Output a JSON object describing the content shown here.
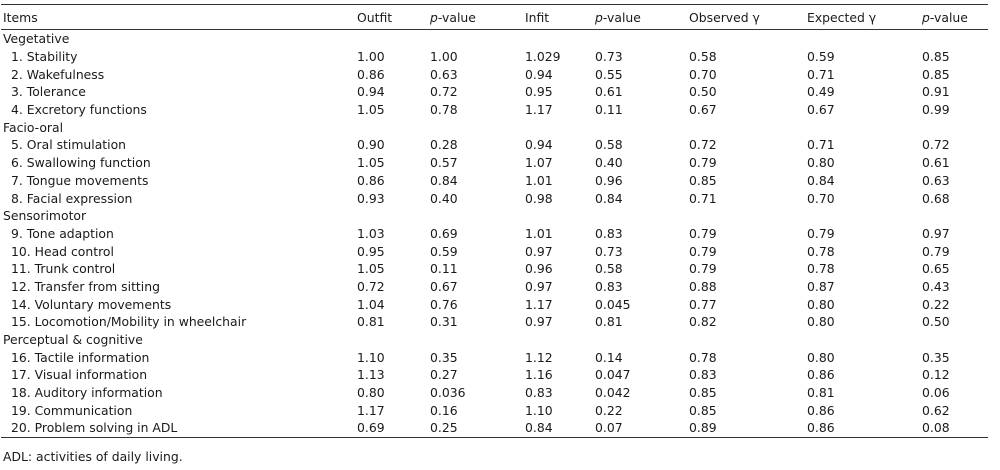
{
  "table": {
    "headers": [
      {
        "pre": "Items",
        "italic": "",
        "post": ""
      },
      {
        "pre": "Outfit",
        "italic": "",
        "post": ""
      },
      {
        "pre": "",
        "italic": "p",
        "post": "-value"
      },
      {
        "pre": "Infit",
        "italic": "",
        "post": ""
      },
      {
        "pre": "",
        "italic": "p",
        "post": "-value"
      },
      {
        "pre": "Observed γ",
        "italic": "",
        "post": ""
      },
      {
        "pre": "Expected γ",
        "italic": "",
        "post": ""
      },
      {
        "pre": "",
        "italic": "p",
        "post": "-value"
      }
    ],
    "groups": [
      {
        "name": "Vegetative",
        "rows": [
          [
            "1. Stability",
            "1.00",
            "1.00",
            "1.029",
            "0.73",
            "0.58",
            "0.59",
            "0.85"
          ],
          [
            "2. Wakefulness",
            "0.86",
            "0.63",
            "0.94",
            "0.55",
            "0.70",
            "0.71",
            "0.85"
          ],
          [
            "3. Tolerance",
            "0.94",
            "0.72",
            "0.95",
            "0.61",
            "0.50",
            "0.49",
            "0.91"
          ],
          [
            "4. Excretory functions",
            "1.05",
            "0.78",
            "1.17",
            "0.11",
            "0.67",
            "0.67",
            "0.99"
          ]
        ]
      },
      {
        "name": "Facio-oral",
        "rows": [
          [
            "5. Oral stimulation",
            "0.90",
            "0.28",
            "0.94",
            "0.58",
            "0.72",
            "0.71",
            "0.72"
          ],
          [
            "6. Swallowing function",
            "1.05",
            "0.57",
            "1.07",
            "0.40",
            "0.79",
            "0.80",
            "0.61"
          ],
          [
            "7. Tongue movements",
            "0.86",
            "0.84",
            "1.01",
            "0.96",
            "0.85",
            "0.84",
            "0.63"
          ],
          [
            "8. Facial expression",
            "0.93",
            "0.40",
            "0.98",
            "0.84",
            "0.71",
            "0.70",
            "0.68"
          ]
        ]
      },
      {
        "name": "Sensorimotor",
        "rows": [
          [
            "9. Tone adaption",
            "1.03",
            "0.69",
            "1.01",
            "0.83",
            "0.79",
            "0.79",
            "0.97"
          ],
          [
            "10. Head control",
            "0.95",
            "0.59",
            "0.97",
            "0.73",
            "0.79",
            "0.78",
            "0.79"
          ],
          [
            "11. Trunk control",
            "1.05",
            "0.11",
            "0.96",
            "0.58",
            "0.79",
            "0.78",
            "0.65"
          ],
          [
            "12. Transfer from sitting",
            "0.72",
            "0.67",
            "0.97",
            "0.83",
            "0.88",
            "0.87",
            "0.43"
          ],
          [
            "14. Voluntary movements",
            "1.04",
            "0.76",
            "1.17",
            "0.045",
            "0.77",
            "0.80",
            "0.22"
          ],
          [
            "15. Locomotion/Mobility in wheelchair",
            "0.81",
            "0.31",
            "0.97",
            "0.81",
            "0.82",
            "0.80",
            "0.50"
          ]
        ]
      },
      {
        "name": "Perceptual & cognitive",
        "rows": [
          [
            "16. Tactile information",
            "1.10",
            "0.35",
            "1.12",
            "0.14",
            "0.78",
            "0.80",
            "0.35"
          ],
          [
            "17. Visual information",
            "1.13",
            "0.27",
            "1.16",
            "0.047",
            "0.83",
            "0.86",
            "0.12"
          ],
          [
            "18. Auditory information",
            "0.80",
            "0.036",
            "0.83",
            "0.042",
            "0.85",
            "0.81",
            "0.06"
          ],
          [
            "19. Communication",
            "1.17",
            "0.16",
            "1.10",
            "0.22",
            "0.85",
            "0.86",
            "0.62"
          ],
          [
            "20. Problem solving in ADL",
            "0.69",
            "0.25",
            "0.84",
            "0.07",
            "0.89",
            "0.86",
            "0.08"
          ]
        ]
      }
    ]
  },
  "footnote": "ADL: activities of daily living."
}
